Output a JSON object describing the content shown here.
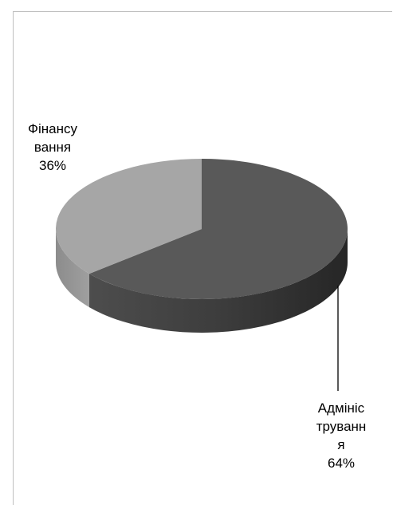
{
  "chart_data": {
    "type": "pie",
    "style": "3d",
    "slices": [
      {
        "label_lines": [
          "Адмініс",
          "труванн",
          "я"
        ],
        "label": "Адміністрування",
        "value": 64,
        "value_label": "64%",
        "color": "#595959"
      },
      {
        "label_lines": [
          "Фінансу",
          "вання"
        ],
        "label": "Фінансування",
        "value": 36,
        "value_label": "36%",
        "color": "#a6a6a6"
      }
    ],
    "legend": "none"
  }
}
